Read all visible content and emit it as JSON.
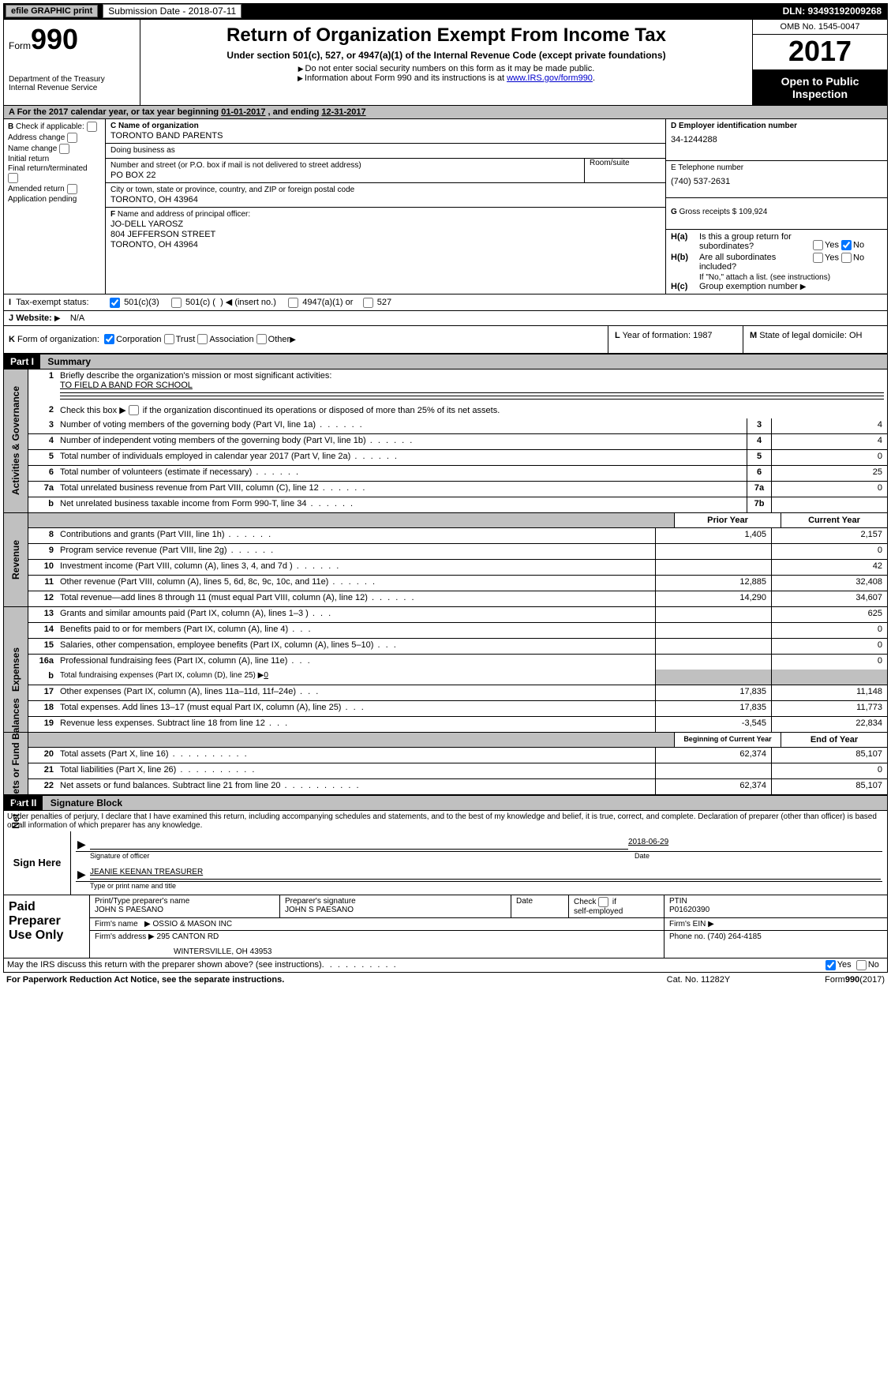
{
  "colors": {
    "black": "#000000",
    "white": "#ffffff",
    "grey": "#c0c0c0",
    "link": "#0000cc"
  },
  "topbar": {
    "efile": "efile GRAPHIC print",
    "submission_label": "Submission Date - 2018-07-11",
    "dln": "DLN: 93493192009268"
  },
  "header": {
    "form_word": "Form",
    "form_number": "990",
    "dept1": "Department of the Treasury",
    "dept2": "Internal Revenue Service",
    "title": "Return of Organization Exempt From Income Tax",
    "subtitle": "Under section 501(c), 527, or 4947(a)(1) of the Internal Revenue Code (except private foundations)",
    "note1": "Do not enter social security numbers on this form as it may be made public.",
    "note2_pre": "Information about Form 990 and its instructions is at ",
    "note2_link": "www.IRS.gov/form990",
    "omb": "OMB No. 1545-0047",
    "year": "2017",
    "open1": "Open to Public",
    "open2": "Inspection"
  },
  "sectionA": {
    "text_pre": "A   For the 2017 calendar year, or tax year beginning ",
    "begin": "01-01-2017",
    "mid": "   , and ending ",
    "end": "12-31-2017"
  },
  "boxB": {
    "head": "B",
    "check_if": "Check if applicable:",
    "opts": [
      "Address change",
      "Name change",
      "Initial return",
      "Final return/terminated",
      "Amended return",
      "Application pending"
    ]
  },
  "boxC": {
    "name_label": "C Name of organization",
    "name": "TORONTO BAND PARENTS",
    "dba_label": "Doing business as",
    "dba": "",
    "street_label": "Number and street (or P.O. box if mail is not delivered to street address)",
    "room_label": "Room/suite",
    "street": "PO BOX 22",
    "city_label": "City or town, state or province, country, and ZIP or foreign postal code",
    "city": "TORONTO, OH  43964"
  },
  "boxD": {
    "label": "D Employer identification number",
    "value": "34-1244288"
  },
  "boxE": {
    "label": "E Telephone number",
    "value": "(740) 537-2631"
  },
  "boxG": {
    "label": "G",
    "text": "Gross receipts $",
    "value": "109,924"
  },
  "boxF": {
    "label": "F",
    "text": "Name and address of principal officer:",
    "line1": "JO-DELL YAROSZ",
    "line2": "804 JEFFERSON STREET",
    "line3": "TORONTO, OH  43964"
  },
  "boxH": {
    "a_label": "H(a)",
    "a_text": "Is this a group return for",
    "a_text2": "subordinates?",
    "b_label": "H(b)",
    "b_text": "Are all subordinates included?",
    "b_note": "If \"No,\" attach a list. (see instructions)",
    "c_label": "H(c)",
    "c_text": "Group exemption number",
    "yes": "Yes",
    "no": "No"
  },
  "rowI": {
    "label": "I",
    "text": "Tax-exempt status:",
    "opt1": "501(c)(3)",
    "opt2a": "501(c) (",
    "opt2b": ")",
    "insert": "(insert no.)",
    "opt3": "4947(a)(1) or",
    "opt4": "527"
  },
  "rowJ": {
    "label": "J",
    "text": "Website:",
    "value": "N/A"
  },
  "rowK": {
    "label": "K",
    "text": "Form of organization:",
    "opts": [
      "Corporation",
      "Trust",
      "Association",
      "Other"
    ],
    "L_label": "L",
    "L_text": "Year of formation:",
    "L_val": "1987",
    "M_label": "M",
    "M_text": "State of legal domicile:",
    "M_val": "OH"
  },
  "part1": {
    "tag": "Part I",
    "title": "Summary"
  },
  "governance": {
    "label": "Activities & Governance",
    "line1_num": "1",
    "line1_text": "Briefly describe the organization's mission or most significant activities:",
    "line1_val": "TO FIELD A BAND FOR SCHOOL",
    "line2_num": "2",
    "line2_text": "Check this box ▶    if the organization discontinued its operations or disposed of more than 25% of its net assets.",
    "rows": [
      {
        "n": "3",
        "t": "Number of voting members of the governing body (Part VI, line 1a)",
        "box": "3",
        "v": "4"
      },
      {
        "n": "4",
        "t": "Number of independent voting members of the governing body (Part VI, line 1b)",
        "box": "4",
        "v": "4"
      },
      {
        "n": "5",
        "t": "Total number of individuals employed in calendar year 2017 (Part V, line 2a)",
        "box": "5",
        "v": "0"
      },
      {
        "n": "6",
        "t": "Total number of volunteers (estimate if necessary)",
        "box": "6",
        "v": "25"
      },
      {
        "n": "7a",
        "t": "Total unrelated business revenue from Part VIII, column (C), line 12",
        "box": "7a",
        "v": "0"
      },
      {
        "n": "b",
        "t": "Net unrelated business taxable income from Form 990-T, line 34",
        "box": "7b",
        "v": ""
      }
    ]
  },
  "revenue": {
    "label": "Revenue",
    "header_prior": "Prior Year",
    "header_current": "Current Year",
    "rows": [
      {
        "n": "8",
        "t": "Contributions and grants (Part VIII, line 1h)",
        "p": "1,405",
        "c": "2,157"
      },
      {
        "n": "9",
        "t": "Program service revenue (Part VIII, line 2g)",
        "p": "",
        "c": "0"
      },
      {
        "n": "10",
        "t": "Investment income (Part VIII, column (A), lines 3, 4, and 7d )",
        "p": "",
        "c": "42"
      },
      {
        "n": "11",
        "t": "Other revenue (Part VIII, column (A), lines 5, 6d, 8c, 9c, 10c, and 11e)",
        "p": "12,885",
        "c": "32,408"
      },
      {
        "n": "12",
        "t": "Total revenue—add lines 8 through 11 (must equal Part VIII, column (A), line 12)",
        "p": "14,290",
        "c": "34,607"
      }
    ]
  },
  "expenses": {
    "label": "Expenses",
    "rows": [
      {
        "n": "13",
        "t": "Grants and similar amounts paid (Part IX, column (A), lines 1–3 )",
        "p": "",
        "c": "625"
      },
      {
        "n": "14",
        "t": "Benefits paid to or for members (Part IX, column (A), line 4)",
        "p": "",
        "c": "0"
      },
      {
        "n": "15",
        "t": "Salaries, other compensation, employee benefits (Part IX, column (A), lines 5–10)",
        "p": "",
        "c": "0"
      },
      {
        "n": "16a",
        "t": "Professional fundraising fees (Part IX, column (A), line 11e)",
        "p": "",
        "c": "0"
      }
    ],
    "line_b_n": "b",
    "line_b_t": "Total fundraising expenses (Part IX, column (D), line 25) ▶",
    "line_b_v": "0",
    "rows2": [
      {
        "n": "17",
        "t": "Other expenses (Part IX, column (A), lines 11a–11d, 11f–24e)",
        "p": "17,835",
        "c": "11,148"
      },
      {
        "n": "18",
        "t": "Total expenses. Add lines 13–17 (must equal Part IX, column (A), line 25)",
        "p": "17,835",
        "c": "11,773"
      },
      {
        "n": "19",
        "t": "Revenue less expenses. Subtract line 18 from line 12",
        "p": "-3,545",
        "c": "22,834"
      }
    ]
  },
  "netassets": {
    "label": "Net Assets or Fund Balances",
    "header_begin": "Beginning of Current Year",
    "header_end": "End of Year",
    "rows": [
      {
        "n": "20",
        "t": "Total assets (Part X, line 16)",
        "p": "62,374",
        "c": "85,107"
      },
      {
        "n": "21",
        "t": "Total liabilities (Part X, line 26)",
        "p": "",
        "c": "0"
      },
      {
        "n": "22",
        "t": "Net assets or fund balances. Subtract line 21 from line 20",
        "p": "62,374",
        "c": "85,107"
      }
    ]
  },
  "part2": {
    "tag": "Part II",
    "title": "Signature Block"
  },
  "perjury": "Under penalties of perjury, I declare that I have examined this return, including accompanying schedules and statements, and to the best of my knowledge and belief, it is true, correct, and complete. Declaration of preparer (other than officer) is based on all information of which preparer has any knowledge.",
  "sign": {
    "here": "Sign Here",
    "sig_label": "Signature of officer",
    "date_label": "Date",
    "date": "2018-06-29",
    "name": "JEANIE KEENAN  TREASURER",
    "name_label": "Type or print name and title"
  },
  "preparer": {
    "left1": "Paid",
    "left2": "Preparer",
    "left3": "Use Only",
    "h1": "Print/Type preparer's name",
    "h2": "Preparer's signature",
    "h3": "Date",
    "h4a": "Check",
    "h4b": "if",
    "h4c": "self-employed",
    "h5": "PTIN",
    "name": "JOHN S PAESANO",
    "sig": "JOHN S PAESANO",
    "ptin": "P01620390",
    "firm_name_label": "Firm's name",
    "firm_name": "OSSIO & MASON INC",
    "firm_ein_label": "Firm's EIN",
    "firm_addr_label": "Firm's address",
    "firm_addr1": "295 CANTON RD",
    "firm_addr2": "WINTERSVILLE, OH  43953",
    "firm_phone_label": "Phone no.",
    "firm_phone": "(740) 264-4185"
  },
  "discuss": {
    "text": "May the IRS discuss this return with the preparer shown above? (see instructions)",
    "yes": "Yes",
    "no": "No"
  },
  "footer": {
    "left": "For Paperwork Reduction Act Notice, see the separate instructions.",
    "mid": "Cat. No. 11282Y",
    "right_pre": "Form ",
    "right_form": "990",
    "right_year": " (2017)"
  }
}
